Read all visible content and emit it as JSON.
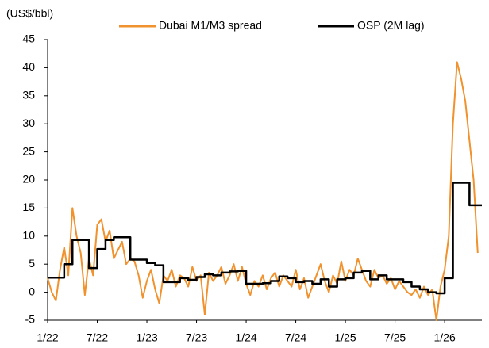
{
  "chart_data": {
    "type": "line",
    "y_label": "(US$/bbl)",
    "xlim": [
      0,
      52.5
    ],
    "xticks": [
      {
        "value": 0,
        "label": "1/22"
      },
      {
        "value": 6,
        "label": "7/22"
      },
      {
        "value": 12,
        "label": "1/23"
      },
      {
        "value": 18,
        "label": "7/23"
      },
      {
        "value": 24,
        "label": "1/24"
      },
      {
        "value": 30,
        "label": "7/24"
      },
      {
        "value": 36,
        "label": "1/25"
      },
      {
        "value": 42,
        "label": "7/25"
      },
      {
        "value": 48,
        "label": "1/26"
      }
    ],
    "ylim": [
      -5,
      45
    ],
    "yticks": [
      -5,
      0,
      5,
      10,
      15,
      20,
      25,
      30,
      35,
      40,
      45
    ],
    "series": [
      {
        "name": "Dubai M1/M3 spread",
        "color": "#f0922e",
        "x": [
          0,
          0.5,
          1,
          1.5,
          2,
          2.5,
          3,
          3.5,
          4,
          4.5,
          5,
          5.5,
          6,
          6.5,
          7,
          7.5,
          8,
          8.5,
          9,
          9.5,
          10,
          10.5,
          11,
          11.5,
          12,
          12.5,
          13,
          13.5,
          14,
          14.5,
          15,
          15.5,
          16,
          16.5,
          17,
          17.5,
          18,
          18.5,
          19,
          19.5,
          20,
          20.5,
          21,
          21.5,
          22,
          22.5,
          23,
          23.5,
          24,
          24.5,
          25,
          25.5,
          26,
          26.5,
          27,
          27.5,
          28,
          28.5,
          29,
          29.5,
          30,
          30.5,
          31,
          31.5,
          32,
          32.5,
          33,
          33.5,
          34,
          34.5,
          35,
          35.5,
          36,
          36.5,
          37,
          37.5,
          38,
          38.5,
          39,
          39.5,
          40,
          40.5,
          41,
          41.5,
          42,
          42.5,
          43,
          43.5,
          44,
          44.5,
          45,
          45.5,
          46,
          46.5,
          47,
          47.5,
          48,
          48.5,
          49,
          49.5,
          50,
          50.5,
          51,
          51.5,
          52
        ],
        "values": [
          2.5,
          0,
          -1.5,
          4,
          8,
          3,
          15,
          10,
          7,
          -0.5,
          6,
          3,
          12,
          13,
          9,
          11,
          6,
          7.5,
          9,
          5,
          6,
          5.5,
          3,
          -1,
          2,
          4,
          0.5,
          -2,
          3,
          2,
          4,
          1,
          3,
          2.5,
          1,
          4.5,
          2,
          3,
          -4,
          3.5,
          2,
          3,
          4.5,
          1.5,
          3,
          5,
          2,
          4.5,
          1.5,
          -0.5,
          2,
          1,
          3,
          0.5,
          2.5,
          3.5,
          1,
          3,
          2,
          1,
          4,
          0.5,
          2.5,
          -1,
          1,
          3,
          5,
          2,
          0,
          3,
          1.5,
          5.5,
          2,
          4,
          3,
          6,
          4,
          2,
          1,
          4,
          2.5,
          3,
          1.5,
          2.5,
          0.5,
          2,
          1,
          0,
          -0.5,
          0.5,
          -1,
          1,
          -0.5,
          0.5,
          -5,
          1,
          4,
          10,
          30,
          41,
          38,
          34,
          27,
          20,
          7
        ]
      },
      {
        "name": "OSP (2M lag)",
        "color": "#000000",
        "drawstyle": "steps-post",
        "x": [
          0,
          1,
          2,
          3,
          4,
          5,
          6,
          7,
          8,
          9,
          10,
          11,
          12,
          13,
          14,
          15,
          16,
          17,
          18,
          19,
          20,
          21,
          22,
          23,
          24,
          25,
          26,
          27,
          28,
          29,
          30,
          31,
          32,
          33,
          34,
          35,
          36,
          37,
          38,
          39,
          40,
          41,
          42,
          43,
          44,
          45,
          46,
          47,
          48,
          49,
          50,
          51,
          52
        ],
        "values": [
          2.6,
          2.6,
          5.0,
          9.3,
          9.3,
          4.3,
          7.7,
          9.3,
          9.8,
          9.8,
          5.8,
          5.8,
          5.2,
          4.8,
          1.8,
          1.8,
          2.5,
          2.2,
          2.7,
          3.2,
          3.0,
          3.5,
          3.7,
          3.8,
          1.5,
          1.5,
          1.6,
          2.0,
          2.8,
          2.5,
          1.8,
          2.0,
          1.5,
          2.3,
          1.0,
          2.3,
          2.5,
          3.5,
          3.8,
          2.3,
          3.0,
          2.3,
          2.3,
          1.8,
          1.0,
          0.5,
          0.0,
          -0.2,
          2.5,
          19.5,
          19.5,
          15.5,
          15.5
        ]
      }
    ]
  }
}
